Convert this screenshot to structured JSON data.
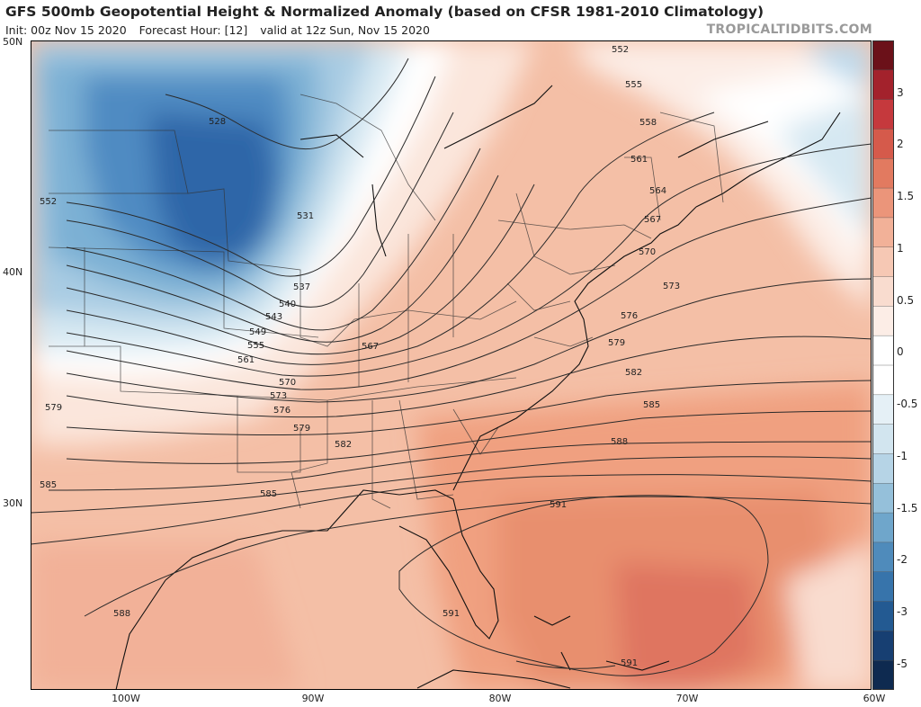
{
  "header": {
    "title": "GFS 500mb Geopotential Height & Normalized Anomaly (based on CFSR 1981-2010 Climatology)",
    "init": "Init: 00z Nov 15 2020",
    "forecast_hour": "Forecast Hour: [12]",
    "valid": "valid at 12z Sun, Nov 15 2020",
    "credit": "TROPICALTIDBITS.COM"
  },
  "axes": {
    "lat_labels": [
      "50N",
      "40N",
      "30N"
    ],
    "lon_labels": [
      "100W",
      "90W",
      "80W",
      "70W",
      "60W"
    ]
  },
  "colorbar": {
    "ticks": [
      "3",
      "2",
      "1.5",
      "1",
      "0.5",
      "0",
      "-0.5",
      "-1",
      "-1.5",
      "-2",
      "-3",
      "-5"
    ],
    "bins": [
      {
        "color": "#6b1119"
      },
      {
        "color": "#a3222c"
      },
      {
        "color": "#c5393d"
      },
      {
        "color": "#d55a4b"
      },
      {
        "color": "#e27a60"
      },
      {
        "color": "#eb957a"
      },
      {
        "color": "#f2b198"
      },
      {
        "color": "#f6c8b4"
      },
      {
        "color": "#f9dccf"
      },
      {
        "color": "#fcede6"
      },
      {
        "color": "#ffffff"
      },
      {
        "color": "#ffffff"
      },
      {
        "color": "#e5f0f6"
      },
      {
        "color": "#d2e5ef"
      },
      {
        "color": "#b6d4e6"
      },
      {
        "color": "#95c0da"
      },
      {
        "color": "#6fa6cb"
      },
      {
        "color": "#4f8bbb"
      },
      {
        "color": "#3774ab"
      },
      {
        "color": "#235a92"
      },
      {
        "color": "#173f72"
      },
      {
        "color": "#0e2a50"
      }
    ]
  },
  "contours": {
    "labels": [
      "528",
      "531",
      "537",
      "540",
      "543",
      "549",
      "552",
      "555",
      "558",
      "561",
      "564",
      "567",
      "570",
      "573",
      "576",
      "579",
      "582",
      "585",
      "588",
      "591"
    ]
  },
  "colors": {
    "strong_negative": "#2f66a8",
    "neutral": "#ffffff",
    "positive": "#f0a080",
    "strong_positive": "#df7561"
  }
}
